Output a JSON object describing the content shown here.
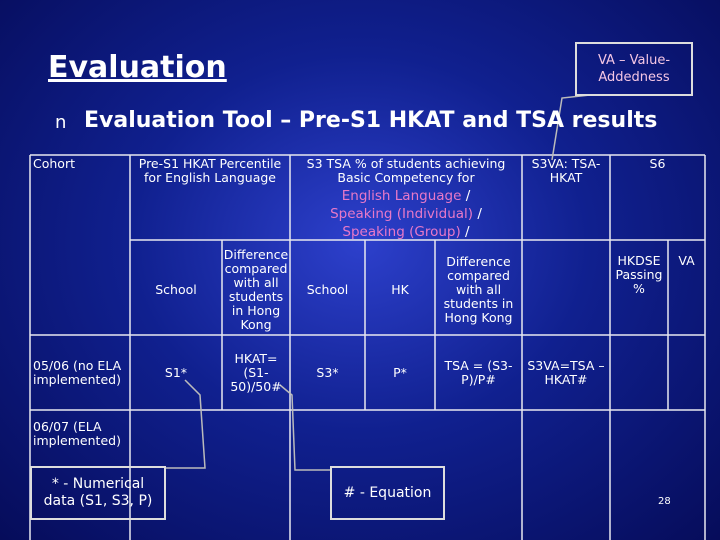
{
  "title": "Evaluation",
  "subtitle_bullet": "n",
  "subtitle": "Evaluation Tool – Pre-S1 HKAT and TSA results",
  "callouts": {
    "va": "VA – Value-Addedness",
    "numerical": "* - Numerical data (S1, S3, P)",
    "equation": "# - Equation"
  },
  "table": {
    "header": {
      "cohort": "Cohort",
      "hkat": "Pre-S1 HKAT Percentile for English Language",
      "tsa": "S3 TSA % of students achieving Basic Competency for",
      "tsa_subjects": [
        "English Language",
        "Speaking (Individual)",
        "Speaking (Group)"
      ],
      "separator": "/",
      "s3va": "S3VA: TSA-HKAT",
      "s6": "S6"
    },
    "subheader": [
      "School",
      "Difference compared with all students in Hong Kong",
      "School",
      "HK",
      "Difference compared with all students in Hong Kong",
      "HKDSE Passing %",
      "VA"
    ],
    "rows": [
      {
        "cohort": "05/06 (no ELA implemented)",
        "cells": [
          "S1*",
          "HKAT= (S1-50)/50#",
          "S3*",
          "P*",
          "TSA = (S3-P)/P#",
          "S3VA=TSA – HKAT#"
        ]
      },
      {
        "cohort": "06/07 (ELA implemented)"
      }
    ]
  },
  "page_number": "28"
}
